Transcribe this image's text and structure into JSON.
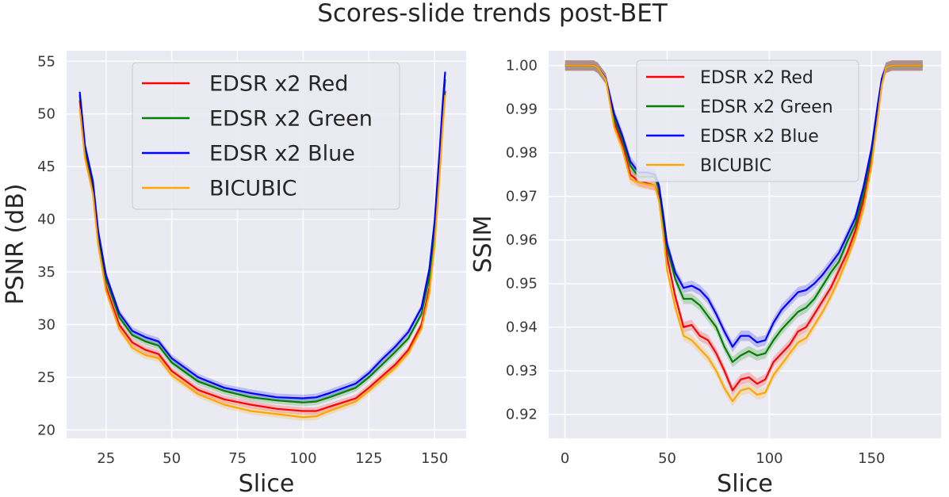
{
  "figure": {
    "suptitle": "Scores-slide trends post-BET"
  },
  "chart_data": [
    {
      "type": "line",
      "title": "",
      "xlabel": "Slice",
      "ylabel": "PSNR (dB)",
      "xlim": [
        10,
        162
      ],
      "ylim": [
        19.2,
        56.0
      ],
      "xticks": [
        25,
        50,
        75,
        100,
        125,
        150
      ],
      "yticks": [
        20,
        25,
        30,
        35,
        40,
        45,
        50,
        55
      ],
      "ytick_decimals": 0,
      "grid": true,
      "legend": {
        "placement": "top-center",
        "size": "large"
      },
      "band_halfwidth": 0.35,
      "x": [
        15,
        17,
        20,
        22,
        25,
        30,
        35,
        40,
        45,
        50,
        60,
        70,
        80,
        90,
        100,
        105,
        110,
        120,
        125,
        130,
        135,
        140,
        145,
        148,
        150,
        152,
        153,
        154
      ],
      "series": [
        {
          "name": "EDSR x2 Red",
          "color": "#ff0000",
          "values": [
            51.3,
            46.2,
            42.8,
            38.0,
            33.6,
            30.0,
            28.3,
            27.6,
            27.2,
            25.6,
            23.8,
            22.9,
            22.4,
            22.0,
            21.8,
            21.8,
            22.2,
            23.0,
            24.0,
            25.1,
            26.2,
            27.6,
            30.0,
            33.5,
            38.0,
            45.0,
            49.0,
            52.2
          ]
        },
        {
          "name": "EDSR x2 Green",
          "color": "#008000",
          "values": [
            51.8,
            46.7,
            43.3,
            38.6,
            34.3,
            30.7,
            29.0,
            28.4,
            28.0,
            26.4,
            24.6,
            23.7,
            23.1,
            22.8,
            22.6,
            22.7,
            23.1,
            24.0,
            25.0,
            26.2,
            27.4,
            28.7,
            31.0,
            34.5,
            39.0,
            46.0,
            50.0,
            53.3
          ]
        },
        {
          "name": "EDSR x2 Blue",
          "color": "#0000ff",
          "values": [
            52.1,
            47.0,
            43.6,
            38.9,
            34.7,
            31.1,
            29.4,
            28.8,
            28.4,
            26.8,
            25.0,
            24.0,
            23.5,
            23.1,
            23.0,
            23.1,
            23.5,
            24.4,
            25.4,
            26.7,
            27.9,
            29.3,
            31.6,
            35.3,
            39.8,
            46.8,
            50.8,
            54.0
          ]
        },
        {
          "name": "BICUBIC",
          "color": "#ffa500",
          "values": [
            50.5,
            45.8,
            42.4,
            37.6,
            33.2,
            29.6,
            27.8,
            27.1,
            26.8,
            25.2,
            23.4,
            22.4,
            21.8,
            21.5,
            21.2,
            21.3,
            21.8,
            22.7,
            23.7,
            24.8,
            25.9,
            27.3,
            29.6,
            33.0,
            37.5,
            44.5,
            48.5,
            51.8
          ]
        }
      ]
    },
    {
      "type": "line",
      "title": "",
      "xlabel": "Slice",
      "ylabel": "SSIM",
      "xlim": [
        -8,
        184
      ],
      "ylim": [
        0.9145,
        1.0034
      ],
      "xticks": [
        0,
        50,
        100,
        150
      ],
      "yticks": [
        0.92,
        0.93,
        0.94,
        0.95,
        0.96,
        0.97,
        0.98,
        0.99,
        1.0
      ],
      "ytick_decimals": 2,
      "grid": true,
      "legend": {
        "placement": "top-right",
        "size": "medium"
      },
      "band_halfwidth": 0.0012,
      "x": [
        0,
        14,
        16,
        20,
        24,
        28,
        32,
        36,
        40,
        44,
        46,
        48,
        50,
        54,
        58,
        62,
        66,
        70,
        74,
        78,
        82,
        86,
        90,
        94,
        98,
        102,
        106,
        110,
        114,
        118,
        122,
        126,
        130,
        134,
        138,
        142,
        146,
        150,
        153,
        155,
        157,
        160,
        175
      ],
      "series": [
        {
          "name": "EDSR x2 Red",
          "color": "#ff0000",
          "values": [
            1.0,
            1.0,
            0.9995,
            0.997,
            0.987,
            0.982,
            0.975,
            0.9735,
            0.973,
            0.9725,
            0.97,
            0.963,
            0.956,
            0.947,
            0.94,
            0.9405,
            0.938,
            0.937,
            0.934,
            0.93,
            0.9255,
            0.928,
            0.9285,
            0.927,
            0.928,
            0.932,
            0.934,
            0.936,
            0.939,
            0.94,
            0.943,
            0.946,
            0.949,
            0.953,
            0.957,
            0.962,
            0.969,
            0.979,
            0.989,
            0.996,
            0.9995,
            1.0,
            1.0
          ]
        },
        {
          "name": "EDSR x2 Green",
          "color": "#008000",
          "values": [
            1.0,
            1.0,
            0.9995,
            0.997,
            0.988,
            0.983,
            0.977,
            0.9745,
            0.9745,
            0.9745,
            0.9715,
            0.9645,
            0.958,
            0.951,
            0.9465,
            0.9465,
            0.945,
            0.9425,
            0.94,
            0.9355,
            0.932,
            0.9335,
            0.9345,
            0.9335,
            0.934,
            0.937,
            0.9395,
            0.9415,
            0.9435,
            0.9445,
            0.9465,
            0.9495,
            0.9525,
            0.955,
            0.9595,
            0.9635,
            0.9705,
            0.98,
            0.99,
            0.9965,
            0.9995,
            1.0,
            1.0
          ]
        },
        {
          "name": "EDSR x2 Blue",
          "color": "#0000ff",
          "values": [
            1.0,
            1.0,
            0.9995,
            0.997,
            0.989,
            0.984,
            0.978,
            0.9755,
            0.9755,
            0.975,
            0.9725,
            0.966,
            0.959,
            0.9525,
            0.949,
            0.9495,
            0.9485,
            0.9465,
            0.943,
            0.939,
            0.9355,
            0.938,
            0.938,
            0.9365,
            0.937,
            0.941,
            0.944,
            0.946,
            0.948,
            0.9485,
            0.95,
            0.952,
            0.9545,
            0.957,
            0.961,
            0.965,
            0.972,
            0.981,
            0.991,
            0.997,
            0.9995,
            1.0,
            1.0
          ]
        },
        {
          "name": "BICUBIC",
          "color": "#ffa500",
          "values": [
            1.0,
            1.0,
            0.9995,
            0.9968,
            0.986,
            0.981,
            0.974,
            0.9732,
            0.9728,
            0.9725,
            0.969,
            0.9615,
            0.953,
            0.9445,
            0.938,
            0.937,
            0.935,
            0.933,
            0.93,
            0.926,
            0.923,
            0.9255,
            0.926,
            0.9245,
            0.925,
            0.929,
            0.9315,
            0.934,
            0.9365,
            0.9375,
            0.9405,
            0.9435,
            0.947,
            0.951,
            0.9555,
            0.9605,
            0.967,
            0.977,
            0.988,
            0.9955,
            0.9995,
            1.0,
            1.0
          ]
        }
      ]
    }
  ]
}
